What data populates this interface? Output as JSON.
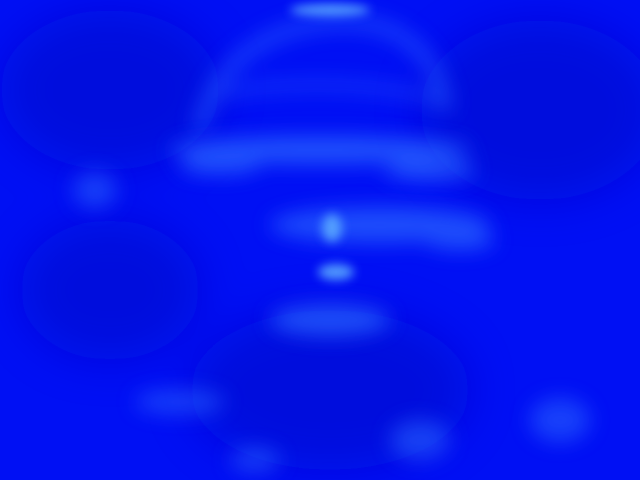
{
  "image": {
    "subject": "blurred-blue-figure",
    "colors": {
      "background": "#0010f4",
      "shadow": "#0008d8",
      "highlight": "#2a66ff",
      "bright": "#5aa8ff"
    }
  }
}
